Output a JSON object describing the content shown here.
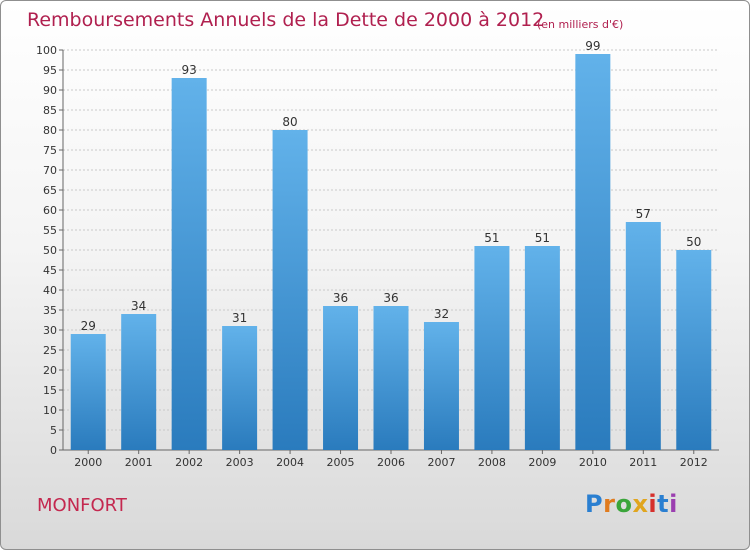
{
  "title": "Remboursements Annuels de la Dette de 2000 à 2012",
  "subtitle": "(en milliers d'€)",
  "commune": "MONFORT",
  "logo": {
    "letters": [
      "P",
      "r",
      "o",
      "x",
      "i",
      "t",
      "i"
    ],
    "colors": [
      "#2a7fd1",
      "#e07b1e",
      "#3aa53a",
      "#e0a51e",
      "#d6302c",
      "#2a7fd1",
      "#9b3fb0"
    ]
  },
  "colors": {
    "bar_light": "#62b2ea",
    "bar_dark": "#2a7bbd",
    "title": "#b0204f",
    "grid": "#c9c9c9",
    "axis_text": "#333333"
  },
  "chart_data": {
    "type": "bar",
    "title": "Remboursements Annuels de la Dette de 2000 à 2012",
    "subtitle": "(en milliers d'€)",
    "xlabel": "",
    "ylabel": "",
    "categories": [
      "2000",
      "2001",
      "2002",
      "2003",
      "2004",
      "2005",
      "2006",
      "2007",
      "2008",
      "2009",
      "2010",
      "2011",
      "2012"
    ],
    "values": [
      29,
      34,
      93,
      31,
      80,
      36,
      36,
      32,
      51,
      51,
      99,
      57,
      50
    ],
    "ylim": [
      0,
      100
    ],
    "yticks": [
      0,
      5,
      10,
      15,
      20,
      25,
      30,
      35,
      40,
      45,
      50,
      55,
      60,
      65,
      70,
      75,
      80,
      85,
      90,
      95,
      100
    ],
    "grid": true,
    "data_labels": true
  }
}
